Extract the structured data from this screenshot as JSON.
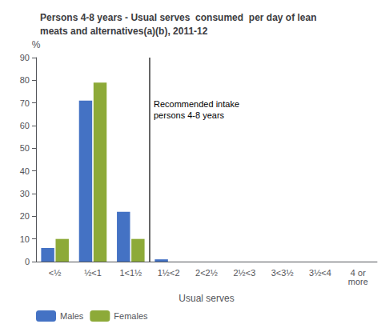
{
  "chart_data": {
    "type": "bar",
    "title": "Persons 4-8 years - Usual serves  consumed  per day of lean\nmeats and alternatives(a)(b), 2011-12",
    "categories": [
      "<½",
      "½<1",
      "1<1½",
      "1½<2",
      "2<2½",
      "2½<3",
      "3<3½",
      "3½<4",
      "4 or\nmore"
    ],
    "series": [
      {
        "name": "Males",
        "color": "#4472C4",
        "values": [
          6,
          71,
          22,
          1,
          0,
          0,
          0,
          0,
          0
        ]
      },
      {
        "name": "Females",
        "color": "#8DAA38",
        "values": [
          10,
          79,
          10,
          0,
          0,
          0,
          0,
          0,
          0
        ]
      }
    ],
    "xlabel": "Usual serves",
    "ylabel": "%",
    "ylim": [
      0,
      90
    ],
    "yticks": [
      0,
      10,
      20,
      30,
      40,
      50,
      60,
      70,
      80,
      90
    ],
    "grid": false,
    "legend": "bottom",
    "annotations": [
      {
        "text": "Recommended intake\npersons 4-8 years",
        "category": "1½<2",
        "y": 72
      }
    ]
  }
}
